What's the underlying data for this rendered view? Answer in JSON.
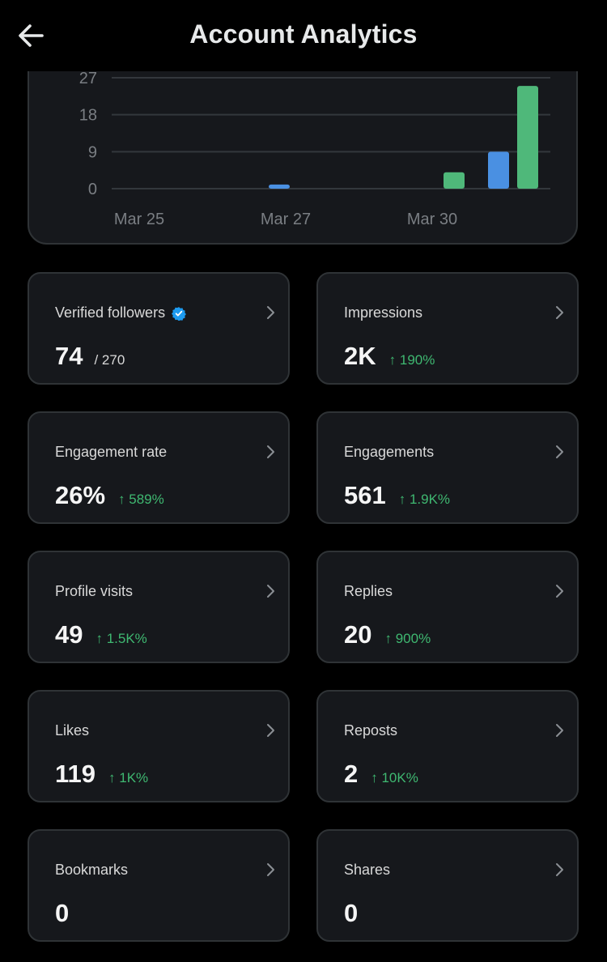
{
  "header": {
    "title": "Account Analytics",
    "back_icon": "arrow-left-icon"
  },
  "chart_data": {
    "type": "bar",
    "categories": [
      "Mar 25",
      "Mar 26",
      "Mar 27",
      "Mar 28",
      "Mar 29",
      "Mar 30",
      "Mar 31",
      "Apr 1"
    ],
    "x_tick_labels": [
      "Mar 25",
      "Mar 27",
      "Mar 30"
    ],
    "y_ticks": [
      "0",
      "9",
      "18",
      "27"
    ],
    "ylim": [
      0,
      27
    ],
    "grid": true,
    "bars": [
      {
        "category": "Mar 27",
        "value": 1,
        "color": "#4a90e2"
      },
      {
        "category": "Mar 30",
        "value": 4,
        "color": "#4fb87a"
      },
      {
        "category": "Mar 31",
        "value": 9,
        "color": "#4a90e2"
      },
      {
        "category": "Apr 1",
        "value": 25,
        "color": "#4fb87a"
      }
    ]
  },
  "metrics": [
    {
      "label": "Verified followers",
      "value": "74",
      "sub": "/ 270",
      "change": "",
      "verified": true
    },
    {
      "label": "Impressions",
      "value": "2K",
      "sub": "",
      "change": "↑ 190%"
    },
    {
      "label": "Engagement rate",
      "value": "26%",
      "sub": "",
      "change": "↑ 589%"
    },
    {
      "label": "Engagements",
      "value": "561",
      "sub": "",
      "change": "↑ 1.9K%"
    },
    {
      "label": "Profile visits",
      "value": "49",
      "sub": "",
      "change": "↑ 1.5K%"
    },
    {
      "label": "Replies",
      "value": "20",
      "sub": "",
      "change": "↑ 900%"
    },
    {
      "label": "Likes",
      "value": "119",
      "sub": "",
      "change": "↑ 1K%"
    },
    {
      "label": "Reposts",
      "value": "2",
      "sub": "",
      "change": "↑ 10K%"
    },
    {
      "label": "Bookmarks",
      "value": "0",
      "sub": "",
      "change": ""
    },
    {
      "label": "Shares",
      "value": "0",
      "sub": "",
      "change": ""
    }
  ],
  "colors": {
    "background": "#000000",
    "card": "#16181c",
    "border": "#2f3336",
    "positive": "#3fb871",
    "verified": "#1d9bf0"
  }
}
